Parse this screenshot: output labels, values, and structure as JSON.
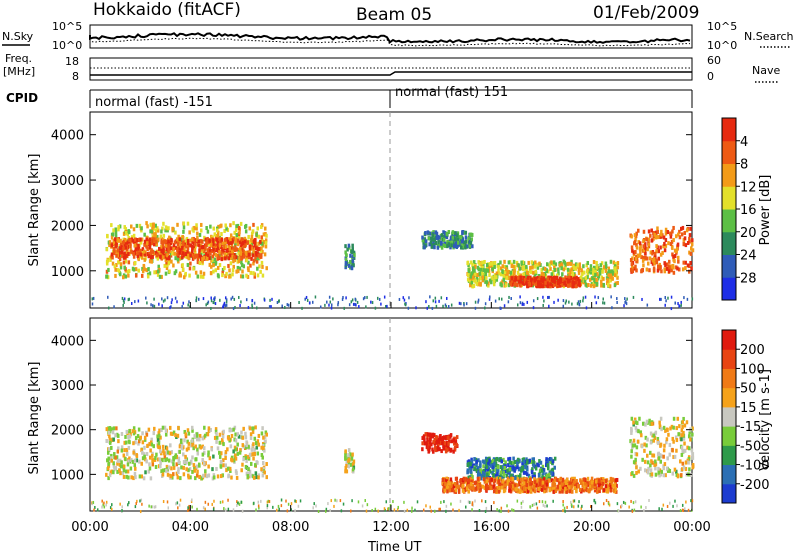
{
  "header": {
    "station": "Hokkaido (fitACF)",
    "beam": "Beam 05",
    "date": "01/Feb/2009"
  },
  "noise_panel": {
    "left_label": "N.Sky",
    "right_label": "N.Search",
    "ytick_top": "10^5",
    "ytick_bottom": "10^0"
  },
  "freq_panel": {
    "left_label_line1": "Freq.",
    "left_label_line2": "[MHz]",
    "right_label": "Nave",
    "left_ticks": [
      "18",
      "8"
    ],
    "right_ticks": [
      "60",
      "0"
    ]
  },
  "cpid_panel": {
    "label": "CPID",
    "segments": [
      {
        "start_hour": 0,
        "end_hour": 12,
        "label": "normal (fast) -151"
      },
      {
        "start_hour": 12,
        "end_hour": 24,
        "label": "normal (fast) 151"
      }
    ]
  },
  "chart_data": [
    {
      "type": "heatmap",
      "parameter": "Power",
      "ylabel": "Slant Range [km]",
      "xlabel": "Time UT",
      "xlim": [
        0,
        24
      ],
      "ylim": [
        180,
        4500
      ],
      "yticks": [
        1000,
        2000,
        3000,
        4000
      ],
      "xticks": [
        "00:00",
        "04:00",
        "08:00",
        "12:00",
        "16:00",
        "20:00",
        "00:00"
      ],
      "colorbar": {
        "label": "Power [dB]",
        "ticks": [
          "4",
          "8",
          "12",
          "16",
          "20",
          "24",
          "28"
        ],
        "colors": [
          "#1e2ee6",
          "#2f5cb8",
          "#2c8a5c",
          "#5cbf45",
          "#e3e02b",
          "#f39b18",
          "#ee5a14",
          "#e62a10"
        ]
      },
      "regions": [
        {
          "t": [
            0.6,
            7.0
          ],
          "r": [
            900,
            2100
          ],
          "level": 0.6
        },
        {
          "t": [
            0.8,
            6.8
          ],
          "r": [
            1300,
            1750
          ],
          "level": 0.85
        },
        {
          "t": [
            10.1,
            10.5
          ],
          "r": [
            1100,
            1600
          ],
          "level": 0.3
        },
        {
          "t": [
            13.2,
            15.2
          ],
          "r": [
            1550,
            1900
          ],
          "level": 0.3
        },
        {
          "t": [
            15.0,
            21.0
          ],
          "r": [
            700,
            1250
          ],
          "level": 0.55
        },
        {
          "t": [
            16.7,
            19.5
          ],
          "r": [
            700,
            900
          ],
          "level": 0.95
        },
        {
          "t": [
            21.5,
            24.0
          ],
          "r": [
            1000,
            2000
          ],
          "level": 0.8
        }
      ]
    },
    {
      "type": "heatmap",
      "parameter": "Velocity",
      "ylabel": "Slant Range [km]",
      "xlabel": "Time UT",
      "xlim": [
        0,
        24
      ],
      "ylim": [
        180,
        4500
      ],
      "yticks": [
        1000,
        2000,
        3000,
        4000
      ],
      "xticks": [
        "00:00",
        "04:00",
        "08:00",
        "12:00",
        "16:00",
        "20:00",
        "00:00"
      ],
      "colorbar": {
        "label": "Velocity [m s-1]",
        "ticks": [
          "200",
          "100",
          "50",
          "15",
          "-15",
          "-50",
          "-100",
          "-200"
        ],
        "colors": [
          "#1c3ccf",
          "#2b6fb4",
          "#2e9a4a",
          "#78cc3a",
          "#c8c8c0",
          "#f5a21b",
          "#f07a16",
          "#e84412",
          "#e01a0e"
        ]
      },
      "regions": [
        {
          "t": [
            0.6,
            7.0
          ],
          "r": [
            950,
            2100
          ],
          "level": 0.5
        },
        {
          "t": [
            10.1,
            10.5
          ],
          "r": [
            1100,
            1600
          ],
          "level": 0.5
        },
        {
          "t": [
            13.2,
            14.6
          ],
          "r": [
            1550,
            1950
          ],
          "level": 0.95
        },
        {
          "t": [
            15.0,
            18.5
          ],
          "r": [
            950,
            1400
          ],
          "level": 0.2
        },
        {
          "t": [
            14.0,
            21.0
          ],
          "r": [
            650,
            950
          ],
          "level": 0.75
        },
        {
          "t": [
            21.5,
            24.0
          ],
          "r": [
            1000,
            2300
          ],
          "level": 0.5
        }
      ]
    }
  ]
}
